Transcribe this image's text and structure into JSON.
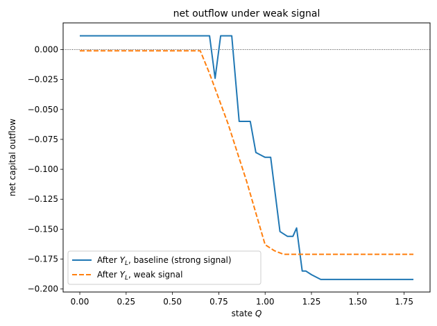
{
  "chart_data": {
    "type": "line",
    "title": "net outflow under weak signal",
    "xlabel": "state Q",
    "ylabel": "net capital outflow",
    "xlim": [
      -0.09,
      1.89
    ],
    "ylim": [
      -0.2025,
      0.0223
    ],
    "xticks": [
      0.0,
      0.25,
      0.5,
      0.75,
      1.0,
      1.25,
      1.5,
      1.75
    ],
    "xtick_labels": [
      "0.00",
      "0.25",
      "0.50",
      "0.75",
      "1.00",
      "1.25",
      "1.50",
      "1.75"
    ],
    "yticks": [
      0.0,
      -0.025,
      -0.05,
      -0.075,
      -0.1,
      -0.125,
      -0.15,
      -0.175,
      -0.2
    ],
    "ytick_labels": [
      "0.000",
      "−0.025",
      "−0.050",
      "−0.075",
      "−0.100",
      "−0.125",
      "−0.150",
      "−0.175",
      "−0.200"
    ],
    "reference_line": {
      "y": 0.0,
      "style": "dotted",
      "color": "#000000"
    },
    "legend_position": "lower-left",
    "series": [
      {
        "name": "After Y_L, baseline (strong signal)",
        "color": "#1f77b4",
        "style": "solid",
        "x": [
          0.0,
          0.7,
          0.73,
          0.76,
          0.82,
          0.86,
          0.92,
          0.95,
          1.0,
          1.03,
          1.05,
          1.08,
          1.12,
          1.15,
          1.17,
          1.2,
          1.22,
          1.25,
          1.3,
          1.8
        ],
        "y": [
          0.0115,
          0.0115,
          -0.024,
          0.0115,
          0.0115,
          -0.06,
          -0.06,
          -0.086,
          -0.09,
          -0.09,
          -0.115,
          -0.152,
          -0.156,
          -0.156,
          -0.149,
          -0.185,
          -0.185,
          -0.188,
          -0.192,
          -0.192
        ]
      },
      {
        "name": "After Y_L, weak signal",
        "color": "#ff7f0e",
        "style": "dashed",
        "x": [
          0.0,
          0.65,
          0.7,
          0.8,
          0.9,
          1.0,
          1.05,
          1.1,
          1.8
        ],
        "y": [
          -0.001,
          -0.001,
          -0.02,
          -0.062,
          -0.11,
          -0.163,
          -0.168,
          -0.171,
          -0.171
        ]
      }
    ]
  },
  "legend": {
    "entry_1_prefix": "After ",
    "entry_1_var": "Y",
    "entry_1_sub": "L",
    "entry_1_suffix": ", baseline (strong signal)",
    "entry_2_prefix": "After ",
    "entry_2_var": "Y",
    "entry_2_sub": "L",
    "entry_2_suffix": ", weak signal"
  },
  "xlabel_parts": {
    "text": "state ",
    "var": "Q"
  }
}
